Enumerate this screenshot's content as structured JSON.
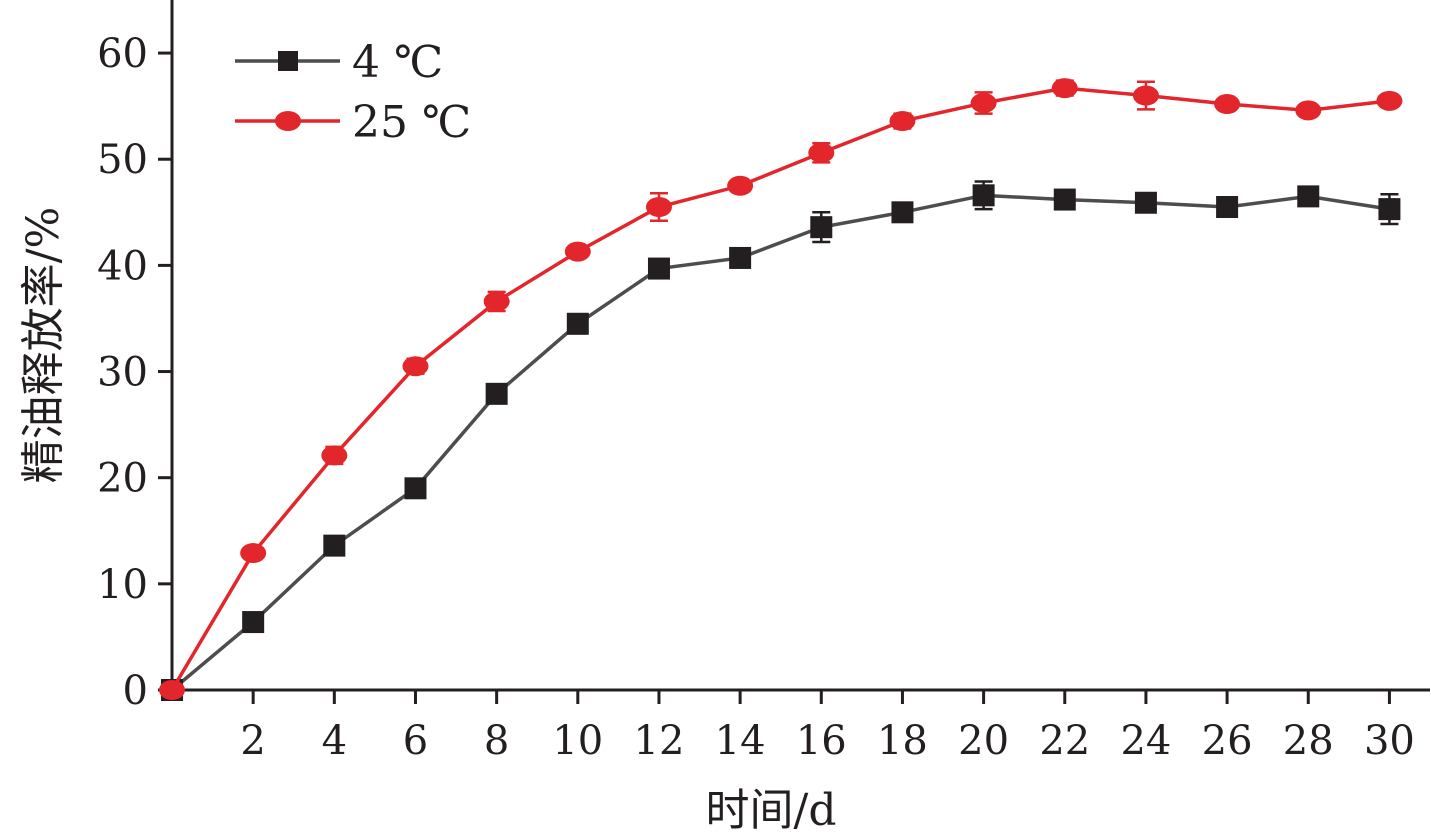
{
  "chart_data": {
    "type": "line",
    "title": "",
    "xlabel": "时间/d",
    "ylabel": "精油释放率/%",
    "xlim": [
      0,
      31
    ],
    "ylim": [
      0,
      65
    ],
    "x_ticks": [
      2,
      4,
      6,
      8,
      10,
      12,
      14,
      16,
      18,
      20,
      22,
      24,
      26,
      28,
      30
    ],
    "y_ticks": [
      0,
      10,
      20,
      30,
      40,
      50,
      60
    ],
    "grid": false,
    "legend_position": "top-left",
    "x": [
      0,
      2,
      4,
      6,
      8,
      10,
      12,
      14,
      16,
      18,
      20,
      22,
      24,
      26,
      28,
      30
    ],
    "series": [
      {
        "name": "4 ℃",
        "marker": "square",
        "color": "#231f20",
        "line_color": "#4d4d4d",
        "values": [
          0,
          6.4,
          13.6,
          19.0,
          27.9,
          34.5,
          39.7,
          40.7,
          43.6,
          45.0,
          46.6,
          46.2,
          45.9,
          45.5,
          46.5,
          45.3
        ],
        "errors": [
          0,
          0.4,
          0.4,
          0.6,
          0.3,
          0.9,
          0.5,
          0.6,
          1.4,
          0.5,
          1.3,
          0.4,
          0.4,
          0.4,
          0.8,
          1.4
        ]
      },
      {
        "name": "25 ℃",
        "marker": "circle",
        "color": "#e3262b",
        "line_color": "#e3262b",
        "values": [
          0,
          12.9,
          22.1,
          30.5,
          36.6,
          41.3,
          45.5,
          47.5,
          50.6,
          53.6,
          55.3,
          56.7,
          56.0,
          55.2,
          54.6,
          55.5
        ],
        "errors": [
          0,
          0.5,
          0.8,
          0.7,
          0.9,
          0.5,
          1.3,
          0.5,
          0.9,
          0.7,
          1.0,
          0.7,
          1.3,
          0.5,
          0.5,
          0.5
        ]
      }
    ]
  }
}
